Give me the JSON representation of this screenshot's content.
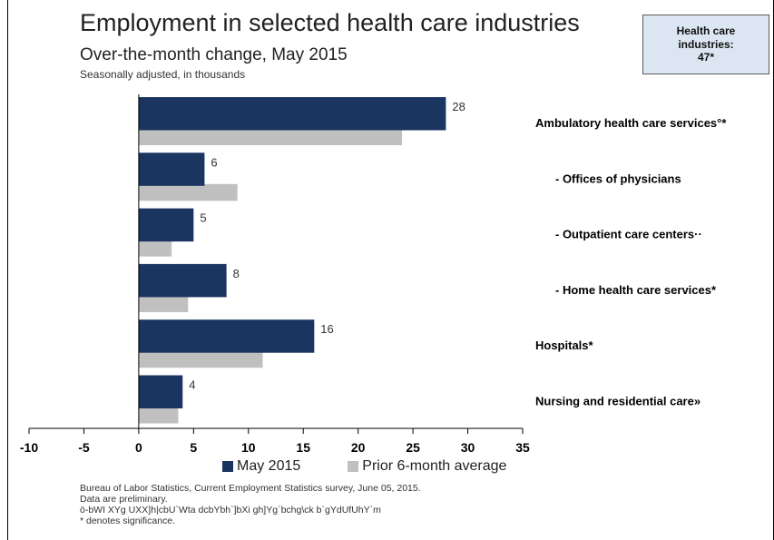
{
  "header": {
    "title": "Employment in selected health care industries",
    "subtitle": "Over-the-month change, May 2015",
    "note": "Seasonally adjusted, in thousands"
  },
  "callout": {
    "line1": "Health care",
    "line2": "industries:",
    "line3": "47*"
  },
  "legend": {
    "series1": "May 2015",
    "series2": "Prior 6-month average"
  },
  "footer": {
    "line1": "Bureau of Labor Statistics, Current Employment Statistics survey, June 05, 2015.",
    "line2": "Data are preliminary.",
    "line3": "ö-bWI XYg UXX]h|cbU`Wta dcbYbh`]bXi gh]Yg`bchg\\ck b`gYdUfUhY`m",
    "line4": "* denotes significance."
  },
  "colors": {
    "series1": "#1a3560",
    "series2": "#c0c0c0"
  },
  "chart_data": {
    "type": "bar",
    "orientation": "horizontal",
    "categories": [
      "Ambulatory health care services°*",
      "- Offices of physicians",
      "- Outpatient care centers··",
      "- Home health care services*",
      "Hospitals*",
      "Nursing and residential care»"
    ],
    "series": [
      {
        "name": "May 2015",
        "values": [
          28,
          6,
          5,
          8,
          16,
          4
        ],
        "labels": [
          "28",
          "6",
          "5",
          "8",
          "16",
          "4"
        ]
      },
      {
        "name": "Prior 6-month average",
        "values": [
          24,
          9,
          3,
          4.5,
          11.3,
          3.6
        ]
      }
    ],
    "xlim": [
      -10,
      35
    ],
    "xticks": [
      -10,
      -5,
      0,
      5,
      10,
      15,
      20,
      25,
      30,
      35
    ],
    "xtick_labels": [
      "-10",
      "-5",
      "0",
      "5",
      "10",
      "15",
      "20",
      "25",
      "30",
      "35"
    ],
    "grid": false,
    "legend_position": "bottom"
  }
}
